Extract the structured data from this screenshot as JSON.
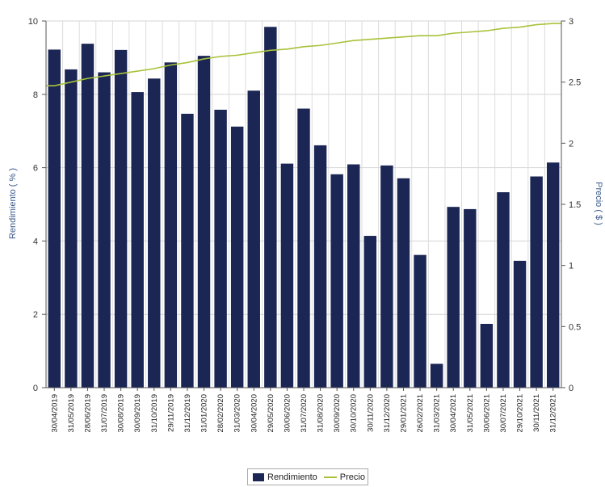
{
  "chart_data": {
    "type": "bar",
    "categories": [
      "30/04/2019",
      "31/05/2019",
      "28/06/2019",
      "31/07/2019",
      "30/08/2019",
      "30/09/2019",
      "31/10/2019",
      "29/11/2019",
      "31/12/2019",
      "31/01/2020",
      "28/02/2020",
      "31/03/2020",
      "30/04/2020",
      "29/05/2020",
      "30/06/2020",
      "31/07/2020",
      "31/08/2020",
      "30/09/2020",
      "30/10/2020",
      "30/11/2020",
      "31/12/2020",
      "29/01/2021",
      "26/02/2021",
      "31/03/2021",
      "30/04/2021",
      "31/05/2021",
      "30/06/2021",
      "30/07/2021",
      "29/10/2021",
      "30/11/2021",
      "31/12/2021"
    ],
    "series": [
      {
        "name": "Rendimiento",
        "type": "bar",
        "axis": "left",
        "color": "#1b2654",
        "values": [
          9.22,
          8.68,
          9.38,
          8.6,
          9.21,
          8.06,
          8.43,
          8.87,
          7.47,
          9.05,
          7.58,
          7.12,
          8.1,
          9.84,
          6.11,
          7.61,
          6.61,
          5.82,
          6.09,
          4.14,
          6.06,
          5.71,
          3.62,
          0.65,
          4.93,
          4.87,
          1.74,
          5.33,
          3.46,
          5.76,
          6.14
        ]
      },
      {
        "name": "Precio",
        "type": "line",
        "axis": "right",
        "color": "#a8c23a",
        "values": [
          2.47,
          2.5,
          2.53,
          2.55,
          2.57,
          2.59,
          2.61,
          2.64,
          2.66,
          2.69,
          2.71,
          2.72,
          2.74,
          2.76,
          2.77,
          2.79,
          2.8,
          2.82,
          2.84,
          2.85,
          2.86,
          2.87,
          2.88,
          2.88,
          2.9,
          2.91,
          2.92,
          2.94,
          2.95,
          2.97,
          2.98
        ]
      }
    ],
    "ylabel": "Rendimiento ( % )",
    "y2label": "Precio ( $ )",
    "ylim": [
      0,
      10
    ],
    "y2lim": [
      0,
      3
    ],
    "yticks": [
      0,
      2,
      4,
      6,
      8,
      10
    ],
    "y2ticks": [
      "0",
      "0.5",
      "1",
      "1.5",
      "2",
      "2.5",
      "3"
    ],
    "grid": true,
    "legend": "bottom",
    "legend_items": [
      "Rendimiento",
      "Precio"
    ]
  }
}
